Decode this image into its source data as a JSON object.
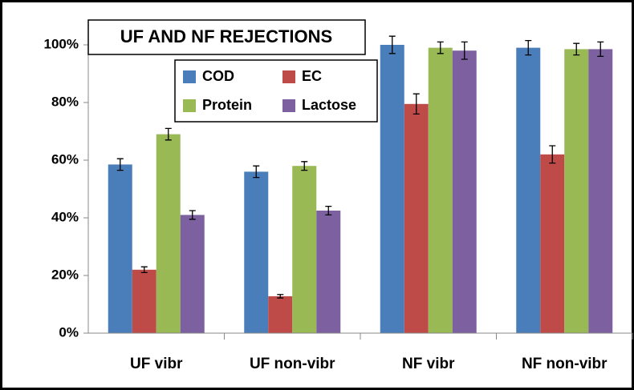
{
  "chart_data": {
    "type": "bar",
    "title": "UF AND NF REJECTIONS",
    "categories": [
      "UF vibr",
      "UF non-vibr",
      "NF vibr",
      "NF non-vibr"
    ],
    "series": [
      {
        "name": "COD",
        "color": "#4a7ebb",
        "values": [
          58.5,
          56,
          100,
          99
        ],
        "errors": [
          2,
          2,
          3,
          2.5
        ]
      },
      {
        "name": "EC",
        "color": "#be4b48",
        "values": [
          22,
          12.8,
          79.5,
          62
        ],
        "errors": [
          1,
          0.6,
          3.5,
          3
        ]
      },
      {
        "name": "Protein",
        "color": "#98b954",
        "values": [
          69,
          58,
          99,
          98.5
        ],
        "errors": [
          2,
          1.5,
          2,
          2
        ]
      },
      {
        "name": "Lactose",
        "color": "#7d60a0",
        "values": [
          41,
          42.5,
          98,
          98.5
        ],
        "errors": [
          1.5,
          1.5,
          3,
          2.5
        ]
      }
    ],
    "ylim": [
      0,
      100
    ],
    "yticks": [
      {
        "value": 0,
        "label": "0%"
      },
      {
        "value": 20,
        "label": "20%"
      },
      {
        "value": 40,
        "label": "40%"
      },
      {
        "value": 60,
        "label": "60%"
      },
      {
        "value": 80,
        "label": "80%"
      },
      {
        "value": 100,
        "label": "100%"
      }
    ],
    "grid": false
  }
}
